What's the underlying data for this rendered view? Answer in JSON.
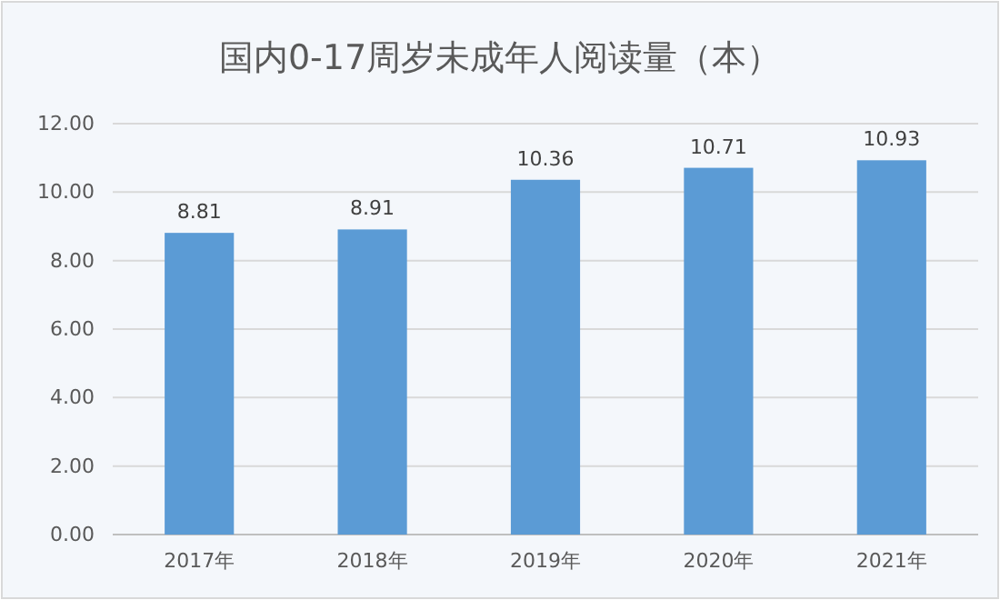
{
  "chart_data": {
    "type": "bar",
    "title": "国内0-17周岁未成年人阅读量（本）",
    "categories": [
      "2017年",
      "2018年",
      "2019年",
      "2020年",
      "2021年"
    ],
    "values": [
      8.81,
      8.91,
      10.36,
      10.71,
      10.93
    ],
    "color": "#5b9bd5",
    "ylim": [
      0,
      12
    ],
    "yticks": [
      {
        "value": 0,
        "label": "0.00"
      },
      {
        "value": 2,
        "label": "2.00"
      },
      {
        "value": 4,
        "label": "4.00"
      },
      {
        "value": 6,
        "label": "6.00"
      },
      {
        "value": 8,
        "label": "8.00"
      },
      {
        "value": 10,
        "label": "10.00"
      },
      {
        "value": 12,
        "label": "12.00"
      }
    ],
    "grid": "y",
    "data_labels": true
  }
}
